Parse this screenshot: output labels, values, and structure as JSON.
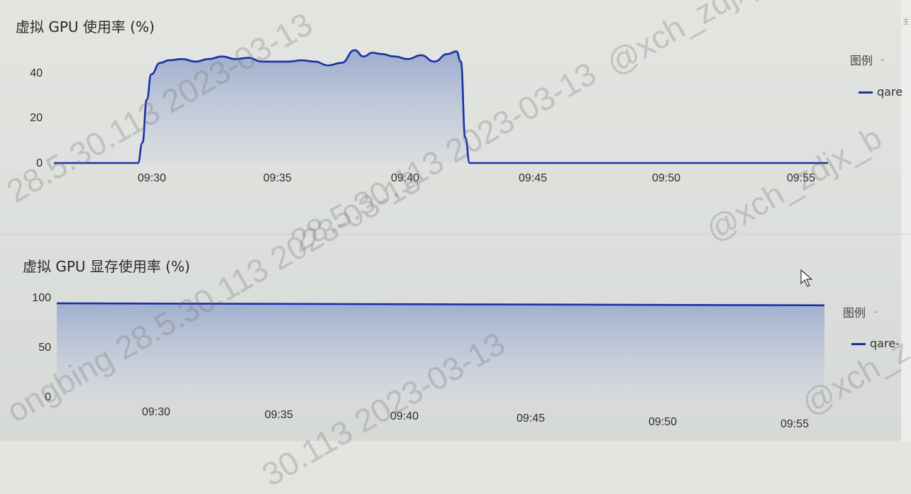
{
  "colors": {
    "series": "#1a2fa8",
    "fill_top": "#8fa1c9",
    "fill_bottom": "#d5dae3",
    "axis_text": "#2e2e2e"
  },
  "chart_data": [
    {
      "type": "area",
      "title": "虚拟 GPU 使用率 (%)",
      "xlabel": "",
      "ylabel": "",
      "x_ticks": [
        "09:30",
        "09:35",
        "09:40",
        "09:45",
        "09:50",
        "09:55"
      ],
      "y_ticks": [
        "0",
        "20",
        "40"
      ],
      "ylim": [
        0,
        45
      ],
      "legend": {
        "title": "图例",
        "placement": "right",
        "icon": "chevron-icon"
      },
      "series": [
        {
          "name": "qare",
          "x": [
            "09:26:40",
            "09:29:50",
            "09:30:00",
            "09:30:10",
            "09:30:20",
            "09:30:40",
            "09:31:00",
            "09:31:30",
            "09:32:00",
            "09:32:30",
            "09:33:00",
            "09:33:30",
            "09:34:00",
            "09:34:30",
            "09:35:00",
            "09:35:30",
            "09:36:00",
            "09:36:30",
            "09:37:00",
            "09:37:30",
            "09:38:00",
            "09:38:20",
            "09:38:40",
            "09:39:00",
            "09:39:30",
            "09:40:00",
            "09:40:30",
            "09:41:00",
            "09:41:30",
            "09:41:50",
            "09:42:00",
            "09:42:10",
            "09:42:20",
            "09:55:50"
          ],
          "values": [
            0,
            0,
            8,
            25,
            35,
            39.5,
            40.5,
            41,
            40,
            41,
            42,
            41,
            41.5,
            40,
            40,
            40,
            40.5,
            40,
            38.5,
            39.5,
            44.5,
            42,
            43.5,
            43,
            42,
            41,
            42.5,
            40,
            43,
            44,
            40,
            10,
            0,
            0
          ]
        }
      ]
    },
    {
      "type": "area",
      "title": "虚拟 GPU 显存使用率 (%)",
      "xlabel": "",
      "ylabel": "",
      "x_ticks": [
        "09:30",
        "09:35",
        "09:40",
        "09:45",
        "09:50",
        "09:55"
      ],
      "y_ticks": [
        "0",
        "50",
        "100"
      ],
      "ylim": [
        0,
        100
      ],
      "legend": {
        "title": "图例",
        "placement": "right",
        "icon": "chevron-icon"
      },
      "series": [
        {
          "name": "qare-",
          "x": [
            "09:26:40",
            "09:55:50"
          ],
          "values": [
            93,
            91
          ]
        }
      ]
    }
  ],
  "legend_labels": {
    "chart1": "qare",
    "chart2": "qare-"
  },
  "watermarks": [
    "28.5.30.113 2023-03-13",
    "28.5.30.113 2023-03-13",
    "ongbing 28.5.30.113 2023-03-13",
    "30.113 2023-03-13",
    "@xch_zdjx_b",
    "@xch_zdjx_b",
    "@xch_z"
  ]
}
